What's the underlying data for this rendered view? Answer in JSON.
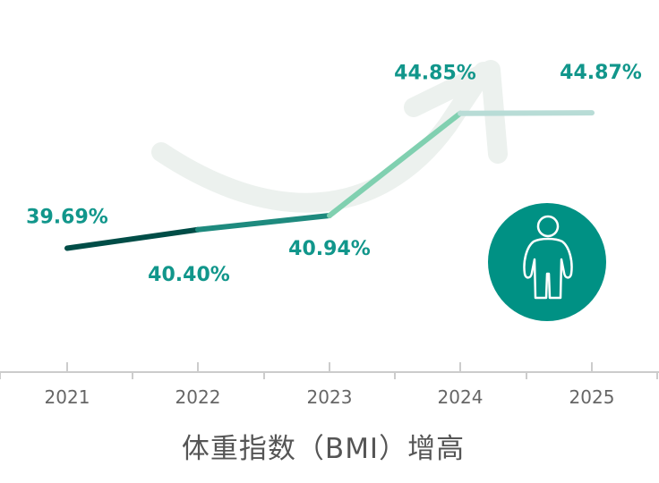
{
  "chart_data": {
    "type": "line",
    "categories": [
      "2021",
      "2022",
      "2023",
      "2024",
      "2025"
    ],
    "values": [
      39.69,
      40.4,
      40.94,
      44.85,
      44.87
    ],
    "value_labels": [
      "39.69%",
      "40.40%",
      "40.94%",
      "44.85%",
      "44.87%"
    ],
    "ylim": [
      35.5,
      48.5
    ],
    "grid": false,
    "legend": "none",
    "xlabel": "体重指数（BMI）增高",
    "colors": {
      "segments": [
        "#004d47",
        "#1e8a7e",
        "#80d0b0",
        "#b8dcd6"
      ],
      "label": "#11968b",
      "badge": "#009184",
      "axis": "#cccccc",
      "arrow": "#ecf1ee"
    }
  },
  "badge": {
    "icon": "person-icon"
  }
}
